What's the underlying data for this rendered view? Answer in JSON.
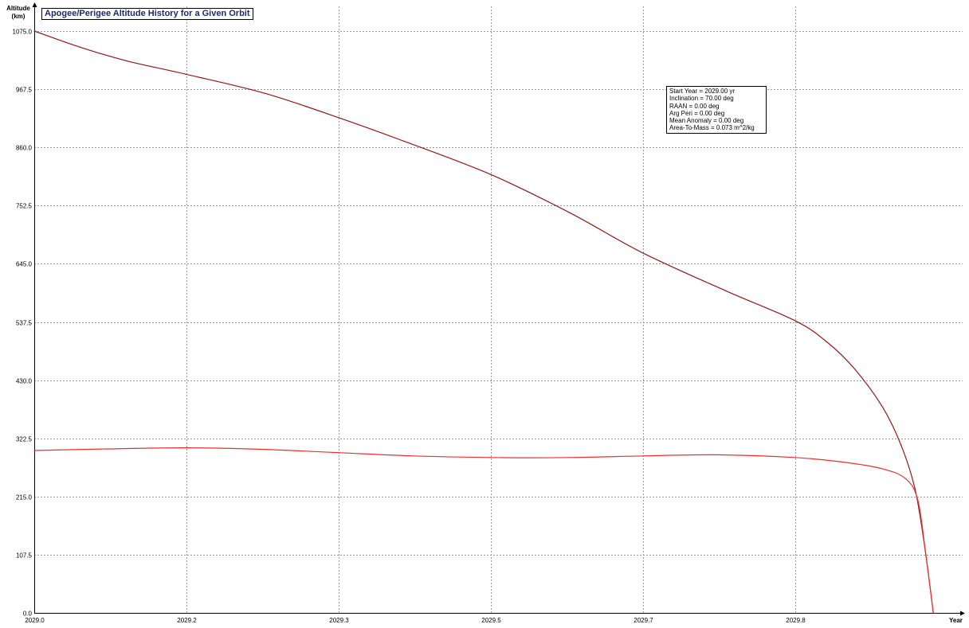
{
  "chart_data": {
    "type": "line",
    "title": "Apogee/Perigee Altitude History for a Given Orbit",
    "ylabel": "Altitude (km)",
    "ylabel_lines": [
      "Altitude",
      "(km)"
    ],
    "xlabel": "Year",
    "xlim": [
      2029.0,
      2029.98
    ],
    "ylim": [
      0,
      1075
    ],
    "x_ticks": [
      2029.0,
      2029.165,
      2029.33,
      2029.495,
      2029.66,
      2029.825
    ],
    "x_tick_labels": [
      "2029.0",
      "2029.2",
      "2029.3",
      "2029.5",
      "2029.7",
      "2029.8"
    ],
    "y_ticks": [
      0,
      107.5,
      215,
      322.5,
      430,
      537.5,
      645,
      752.5,
      860,
      967.5,
      1075
    ],
    "y_tick_labels": [
      "0.0",
      "107.5",
      "215.0",
      "322.5",
      "430.0",
      "537.5",
      "645.0",
      "752.5",
      "860.0",
      "967.5",
      "1075.0"
    ],
    "grid": true,
    "annotation_lines": [
      "Start Year = 2029.00 yr",
      "Inclination = 70.00 deg",
      "RAAN = 0.00 deg",
      "Arg Peri = 0.00 deg",
      "Mean Anomaly = 0.00 deg",
      "Area-To-Mass = 0.073 m^2/kg"
    ],
    "series": [
      {
        "color": "#8b1a1a",
        "x": [
          2029.0,
          2029.05,
          2029.1,
          2029.165,
          2029.25,
          2029.33,
          2029.4,
          2029.495,
          2029.58,
          2029.66,
          2029.75,
          2029.825,
          2029.86,
          2029.89,
          2029.92,
          2029.94,
          2029.955,
          2029.965,
          2029.975
        ],
        "y": [
          1075,
          1045,
          1020,
          995,
          960,
          915,
          872,
          810,
          740,
          665,
          595,
          540,
          500,
          450,
          380,
          310,
          230,
          130,
          0
        ]
      },
      {
        "color": "#e83030",
        "x": [
          2029.0,
          2029.08,
          2029.165,
          2029.25,
          2029.33,
          2029.41,
          2029.495,
          2029.58,
          2029.66,
          2029.74,
          2029.825,
          2029.88,
          2029.92,
          2029.945,
          2029.958,
          2029.966,
          2029.975
        ],
        "y": [
          300,
          303,
          305,
          302,
          296,
          290,
          287,
          287,
          290,
          292,
          287,
          278,
          266,
          248,
          210,
          120,
          0
        ]
      }
    ]
  }
}
